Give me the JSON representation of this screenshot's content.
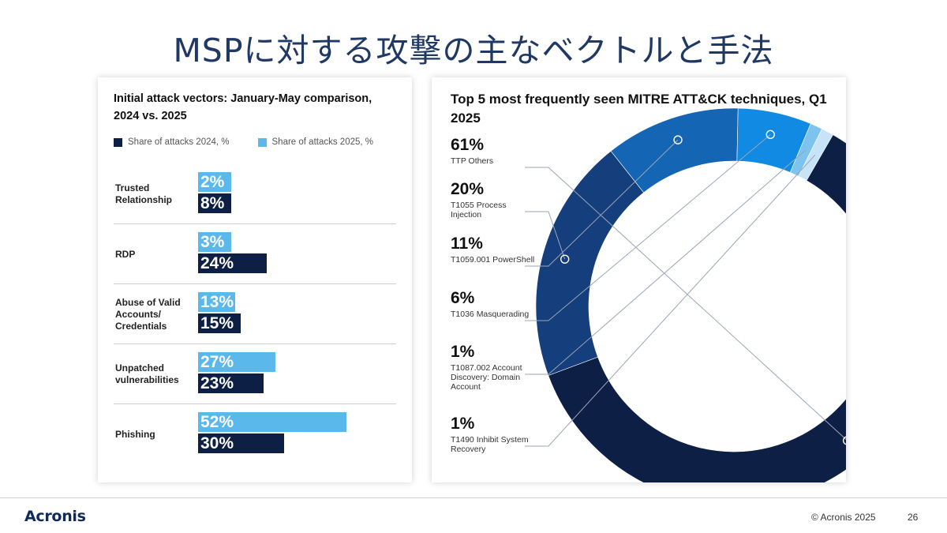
{
  "slide": {
    "title": "MSPに対する攻撃の主なベクトルと手法",
    "logo": "Acronis",
    "copyright": "© Acronis 2025",
    "page_number": "26"
  },
  "colors": {
    "dark_navy": "#0d1f45",
    "light_blue": "#5bb8eb",
    "donut": [
      "#0d1f45",
      "#153e7d",
      "#1565b5",
      "#118ae3",
      "#7cc3ee",
      "#c6e3f7"
    ]
  },
  "chart_data": [
    {
      "type": "bar",
      "title": "Initial attack vectors: January-May comparison, 2024 vs. 2025",
      "orientation": "horizontal",
      "categories": [
        "Trusted Relationship",
        "RDP",
        "Abuse of Valid Accounts/ Credentials",
        "Unpatched vulnerabilities",
        "Phishing"
      ],
      "series": [
        {
          "name": "Share of attacks 2024, %",
          "values": [
            8,
            24,
            15,
            23,
            30
          ],
          "labels": [
            "8%",
            "24%",
            "15%",
            "23%",
            "30%"
          ]
        },
        {
          "name": "Share of attacks 2025, %",
          "values": [
            2,
            3,
            13,
            27,
            52
          ],
          "labels": [
            "2%",
            "3%",
            "13%",
            "27%",
            "52%"
          ]
        }
      ],
      "legend_position": "top-left",
      "xlim": [
        0,
        55
      ]
    },
    {
      "type": "pie",
      "subtype": "donut",
      "title": "Top 5 most frequently seen MITRE ATT&CK techniques, Q1 2025",
      "slices": [
        {
          "label": "TTP Others",
          "value": 61,
          "value_label": "61%"
        },
        {
          "label": "T1055 Process Injection",
          "value": 20,
          "value_label": "20%"
        },
        {
          "label": "T1059.001 PowerShell",
          "value": 11,
          "value_label": "11%"
        },
        {
          "label": "T1036 Masquerading",
          "value": 6,
          "value_label": "6%"
        },
        {
          "label": "T1087.002 Account Discovery: Domain Account",
          "value": 1,
          "value_label": "1%"
        },
        {
          "label": "T1490 Inhibit System Recovery",
          "value": 1,
          "value_label": "1%"
        }
      ]
    }
  ]
}
